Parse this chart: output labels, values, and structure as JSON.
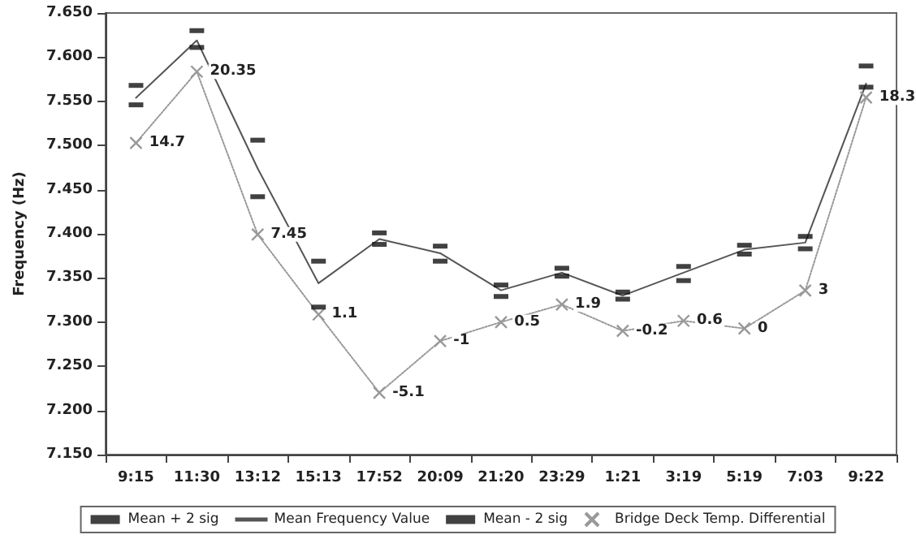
{
  "chart_data": {
    "type": "line",
    "ylabel": "Frequency (Hz)",
    "categories": [
      "9:15",
      "11:30",
      "13:12",
      "15:13",
      "17:52",
      "20:09",
      "21:20",
      "23:29",
      "1:21",
      "3:19",
      "5:19",
      "7:03",
      "9:22"
    ],
    "series": [
      {
        "name": "Mean + 2 sig",
        "type": "scatter",
        "color": "#111111",
        "values": [
          7.568,
          7.63,
          7.506,
          7.369,
          7.401,
          7.386,
          7.342,
          7.361,
          7.334,
          7.363,
          7.387,
          7.397,
          7.59
        ]
      },
      {
        "name": "Mean Frequency Value",
        "color": "#555555",
        "marker": "none",
        "line_style": "solid",
        "values": [
          7.554,
          7.619,
          7.474,
          7.344,
          7.394,
          7.378,
          7.336,
          7.356,
          7.33,
          7.356,
          7.382,
          7.39,
          7.57
        ]
      },
      {
        "name": "Mean - 2 sig",
        "type": "scatter",
        "color": "#111111",
        "values": [
          7.546,
          7.611,
          7.442,
          7.317,
          7.388,
          7.369,
          7.329,
          7.352,
          7.326,
          7.347,
          7.377,
          7.383,
          7.566
        ]
      },
      {
        "name": "Bridge Deck Temp. Differential",
        "axis": "y2",
        "color": "#999999",
        "marker": "cross",
        "line_style": "dotted",
        "values": [
          14.7,
          20.35,
          7.45,
          1.1,
          -5.1,
          -1,
          0.5,
          1.9,
          -0.2,
          0.6,
          0,
          3,
          18.3
        ],
        "value_labels": [
          "14.7",
          "20.35",
          "7.45",
          "1.1",
          "-5.1",
          "-1",
          "0.5",
          "1.9",
          "-0.2",
          "0.6",
          "0",
          "3",
          "18.3"
        ]
      }
    ],
    "ylim": [
      7.15,
      7.65
    ],
    "yticks": [
      {
        "value": 7.15,
        "label": "7.150"
      },
      {
        "value": 7.2,
        "label": "7.200"
      },
      {
        "value": 7.25,
        "label": "7.250"
      },
      {
        "value": 7.3,
        "label": "7.300"
      },
      {
        "value": 7.35,
        "label": "7.350"
      },
      {
        "value": 7.4,
        "label": "7.400"
      },
      {
        "value": 7.45,
        "label": "7.450"
      },
      {
        "value": 7.5,
        "label": "7.500"
      },
      {
        "value": 7.55,
        "label": "7.550"
      },
      {
        "value": 7.6,
        "label": "7.600"
      },
      {
        "value": 7.65,
        "label": "7.650"
      }
    ],
    "y2lim": [
      -10,
      25
    ],
    "grid": false,
    "legend": "bottom"
  }
}
